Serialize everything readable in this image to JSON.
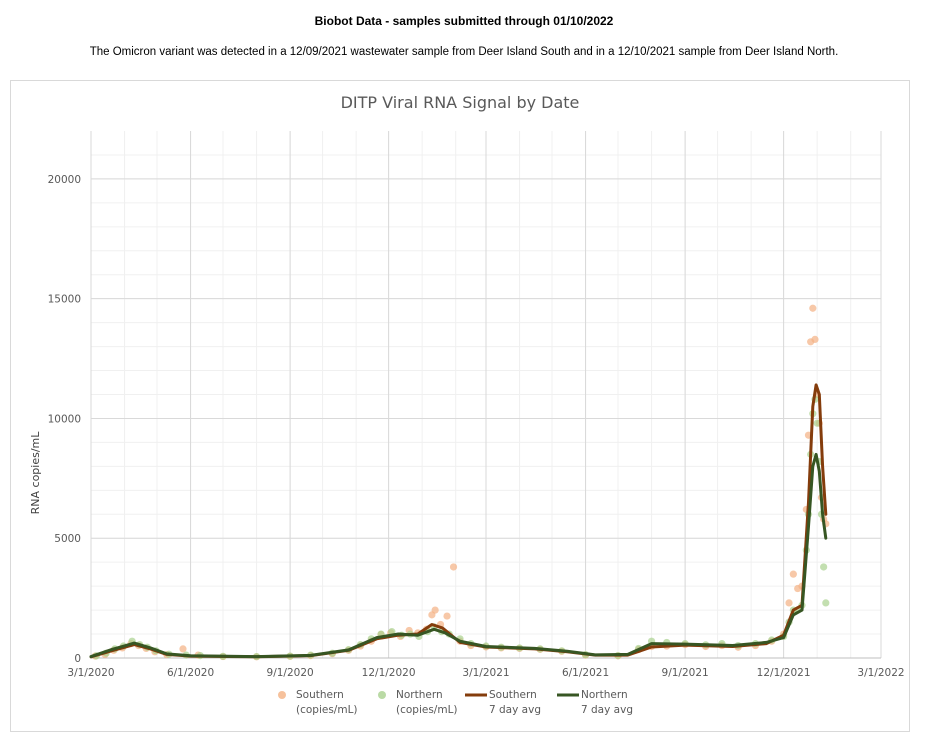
{
  "header": {
    "title": "Biobot Data - samples submitted through 01/10/2022",
    "subtitle": "The Omicron variant was detected in a 12/09/2021 wastewater sample from Deer Island South and in a 12/10/2021 sample from Deer Island North."
  },
  "chart_data": {
    "type": "scatter",
    "title": "DITP Viral RNA Signal by Date",
    "xlabel": "",
    "ylabel": "RNA copies/mL",
    "ylim": [
      0,
      22000
    ],
    "xlim": [
      "2020-03-01",
      "2022-03-01"
    ],
    "x_ticks": [
      "3/1/2020",
      "6/1/2020",
      "9/1/2020",
      "12/1/2020",
      "3/1/2021",
      "6/1/2021",
      "9/1/2021",
      "12/1/2021",
      "3/1/2022"
    ],
    "x_tick_dates": [
      "2020-03-01",
      "2020-06-01",
      "2020-09-01",
      "2020-12-01",
      "2021-03-01",
      "2021-06-01",
      "2021-09-01",
      "2021-12-01",
      "2022-03-01"
    ],
    "y_ticks": [
      0,
      5000,
      10000,
      15000,
      20000
    ],
    "y_tick_labels": [
      "0",
      "5000",
      "10000",
      "15000",
      "20000"
    ],
    "grid": true,
    "minor_grid": true,
    "legend_position": "bottom",
    "series": [
      {
        "name": "Southern (copies/mL)",
        "label_lines": [
          "Southern",
          "(copies/mL)"
        ],
        "kind": "scatter",
        "color": "#f4b183",
        "points": [
          [
            "2020-03-05",
            80
          ],
          [
            "2020-03-14",
            150
          ],
          [
            "2020-03-22",
            320
          ],
          [
            "2020-03-30",
            420
          ],
          [
            "2020-04-07",
            600
          ],
          [
            "2020-04-14",
            520
          ],
          [
            "2020-04-21",
            400
          ],
          [
            "2020-04-29",
            260
          ],
          [
            "2020-05-10",
            140
          ],
          [
            "2020-05-25",
            380
          ],
          [
            "2020-06-08",
            120
          ],
          [
            "2020-07-01",
            60
          ],
          [
            "2020-08-01",
            50
          ],
          [
            "2020-09-01",
            70
          ],
          [
            "2020-09-20",
            100
          ],
          [
            "2020-10-10",
            180
          ],
          [
            "2020-10-25",
            320
          ],
          [
            "2020-11-05",
            500
          ],
          [
            "2020-11-15",
            700
          ],
          [
            "2020-11-24",
            980
          ],
          [
            "2020-12-03",
            1050
          ],
          [
            "2020-12-12",
            900
          ],
          [
            "2020-12-20",
            1150
          ],
          [
            "2020-12-28",
            1050
          ],
          [
            "2021-01-05",
            1200
          ],
          [
            "2021-01-10",
            1800
          ],
          [
            "2021-01-13",
            2000
          ],
          [
            "2021-01-18",
            1400
          ],
          [
            "2021-01-24",
            1750
          ],
          [
            "2021-01-30",
            3800
          ],
          [
            "2021-02-05",
            700
          ],
          [
            "2021-02-15",
            520
          ],
          [
            "2021-03-01",
            460
          ],
          [
            "2021-03-15",
            420
          ],
          [
            "2021-04-01",
            400
          ],
          [
            "2021-04-20",
            360
          ],
          [
            "2021-05-10",
            280
          ],
          [
            "2021-06-01",
            120
          ],
          [
            "2021-07-01",
            90
          ],
          [
            "2021-07-20",
            350
          ],
          [
            "2021-08-01",
            480
          ],
          [
            "2021-08-15",
            500
          ],
          [
            "2021-09-01",
            560
          ],
          [
            "2021-09-20",
            480
          ],
          [
            "2021-10-05",
            520
          ],
          [
            "2021-10-20",
            450
          ],
          [
            "2021-11-05",
            520
          ],
          [
            "2021-11-20",
            700
          ],
          [
            "2021-12-01",
            1000
          ],
          [
            "2021-12-06",
            2300
          ],
          [
            "2021-12-10",
            3500
          ],
          [
            "2021-12-14",
            2900
          ],
          [
            "2021-12-18",
            3000
          ],
          [
            "2021-12-22",
            6200
          ],
          [
            "2021-12-24",
            9300
          ],
          [
            "2021-12-26",
            13200
          ],
          [
            "2021-12-28",
            14600
          ],
          [
            "2021-12-30",
            13300
          ],
          [
            "2022-01-01",
            11000
          ],
          [
            "2022-01-03",
            9800
          ],
          [
            "2022-01-05",
            6700
          ],
          [
            "2022-01-07",
            5800
          ],
          [
            "2022-01-09",
            5600
          ]
        ]
      },
      {
        "name": "Northern (copies/mL)",
        "label_lines": [
          "Northern",
          "(copies/mL)"
        ],
        "kind": "scatter",
        "color": "#a9d18e",
        "points": [
          [
            "2020-03-06",
            90
          ],
          [
            "2020-03-15",
            200
          ],
          [
            "2020-03-23",
            380
          ],
          [
            "2020-03-31",
            500
          ],
          [
            "2020-04-08",
            700
          ],
          [
            "2020-04-15",
            560
          ],
          [
            "2020-04-22",
            450
          ],
          [
            "2020-04-30",
            300
          ],
          [
            "2020-05-12",
            160
          ],
          [
            "2020-05-28",
            120
          ],
          [
            "2020-06-10",
            100
          ],
          [
            "2020-07-01",
            70
          ],
          [
            "2020-08-01",
            60
          ],
          [
            "2020-09-01",
            80
          ],
          [
            "2020-09-20",
            120
          ],
          [
            "2020-10-10",
            200
          ],
          [
            "2020-10-25",
            350
          ],
          [
            "2020-11-05",
            560
          ],
          [
            "2020-11-15",
            800
          ],
          [
            "2020-11-24",
            1000
          ],
          [
            "2020-12-04",
            1100
          ],
          [
            "2020-12-13",
            950
          ],
          [
            "2020-12-21",
            1000
          ],
          [
            "2020-12-29",
            900
          ],
          [
            "2021-01-06",
            1100
          ],
          [
            "2021-01-12",
            1300
          ],
          [
            "2021-01-19",
            1100
          ],
          [
            "2021-01-26",
            1000
          ],
          [
            "2021-02-05",
            800
          ],
          [
            "2021-02-15",
            600
          ],
          [
            "2021-03-01",
            500
          ],
          [
            "2021-03-15",
            450
          ],
          [
            "2021-04-01",
            420
          ],
          [
            "2021-04-20",
            380
          ],
          [
            "2021-05-10",
            300
          ],
          [
            "2021-06-01",
            140
          ],
          [
            "2021-07-01",
            100
          ],
          [
            "2021-07-20",
            400
          ],
          [
            "2021-08-01",
            700
          ],
          [
            "2021-08-15",
            650
          ],
          [
            "2021-09-01",
            600
          ],
          [
            "2021-09-20",
            550
          ],
          [
            "2021-10-05",
            600
          ],
          [
            "2021-10-20",
            520
          ],
          [
            "2021-11-05",
            600
          ],
          [
            "2021-11-20",
            750
          ],
          [
            "2021-12-01",
            900
          ],
          [
            "2021-12-06",
            1500
          ],
          [
            "2021-12-10",
            2000
          ],
          [
            "2021-12-14",
            2000
          ],
          [
            "2021-12-18",
            2200
          ],
          [
            "2021-12-22",
            4500
          ],
          [
            "2021-12-24",
            6000
          ],
          [
            "2021-12-26",
            8500
          ],
          [
            "2021-12-28",
            10200
          ],
          [
            "2021-12-30",
            10800
          ],
          [
            "2022-01-01",
            9800
          ],
          [
            "2022-01-03",
            8200
          ],
          [
            "2022-01-05",
            6000
          ],
          [
            "2022-01-07",
            3800
          ],
          [
            "2022-01-09",
            2300
          ]
        ]
      },
      {
        "name": "Southern 7 day avg",
        "label_lines": [
          "Southern",
          "7 day avg"
        ],
        "kind": "line",
        "color": "#843c0c",
        "points": [
          [
            "2020-03-01",
            50
          ],
          [
            "2020-03-20",
            300
          ],
          [
            "2020-04-10",
            560
          ],
          [
            "2020-04-25",
            380
          ],
          [
            "2020-05-10",
            150
          ],
          [
            "2020-06-01",
            80
          ],
          [
            "2020-08-01",
            50
          ],
          [
            "2020-09-20",
            100
          ],
          [
            "2020-10-25",
            320
          ],
          [
            "2020-11-20",
            800
          ],
          [
            "2020-12-10",
            950
          ],
          [
            "2020-12-28",
            1000
          ],
          [
            "2021-01-10",
            1400
          ],
          [
            "2021-01-20",
            1250
          ],
          [
            "2021-02-05",
            650
          ],
          [
            "2021-03-01",
            460
          ],
          [
            "2021-04-15",
            380
          ],
          [
            "2021-05-15",
            260
          ],
          [
            "2021-06-10",
            120
          ],
          [
            "2021-07-10",
            120
          ],
          [
            "2021-08-01",
            460
          ],
          [
            "2021-09-01",
            540
          ],
          [
            "2021-10-15",
            480
          ],
          [
            "2021-11-15",
            600
          ],
          [
            "2021-12-01",
            950
          ],
          [
            "2021-12-10",
            2000
          ],
          [
            "2021-12-18",
            2200
          ],
          [
            "2021-12-24",
            6500
          ],
          [
            "2021-12-28",
            10500
          ],
          [
            "2021-12-31",
            11400
          ],
          [
            "2022-01-03",
            11000
          ],
          [
            "2022-01-06",
            8000
          ],
          [
            "2022-01-09",
            6000
          ]
        ]
      },
      {
        "name": "Northern 7 day avg",
        "label_lines": [
          "Northern",
          "7 day avg"
        ],
        "kind": "line",
        "color": "#375623",
        "points": [
          [
            "2020-03-01",
            60
          ],
          [
            "2020-03-20",
            350
          ],
          [
            "2020-04-10",
            620
          ],
          [
            "2020-04-25",
            420
          ],
          [
            "2020-05-10",
            170
          ],
          [
            "2020-06-01",
            90
          ],
          [
            "2020-08-01",
            60
          ],
          [
            "2020-09-20",
            110
          ],
          [
            "2020-10-25",
            340
          ],
          [
            "2020-11-20",
            850
          ],
          [
            "2020-12-10",
            1000
          ],
          [
            "2020-12-28",
            950
          ],
          [
            "2021-01-12",
            1200
          ],
          [
            "2021-01-22",
            1050
          ],
          [
            "2021-02-05",
            700
          ],
          [
            "2021-03-01",
            480
          ],
          [
            "2021-04-15",
            400
          ],
          [
            "2021-05-15",
            280
          ],
          [
            "2021-06-10",
            130
          ],
          [
            "2021-07-10",
            150
          ],
          [
            "2021-08-01",
            600
          ],
          [
            "2021-09-01",
            580
          ],
          [
            "2021-10-15",
            520
          ],
          [
            "2021-11-15",
            650
          ],
          [
            "2021-12-01",
            850
          ],
          [
            "2021-12-10",
            1800
          ],
          [
            "2021-12-18",
            2000
          ],
          [
            "2021-12-24",
            5500
          ],
          [
            "2021-12-28",
            8000
          ],
          [
            "2021-12-31",
            8500
          ],
          [
            "2022-01-03",
            7800
          ],
          [
            "2022-01-06",
            6000
          ],
          [
            "2022-01-09",
            5000
          ]
        ]
      }
    ]
  }
}
